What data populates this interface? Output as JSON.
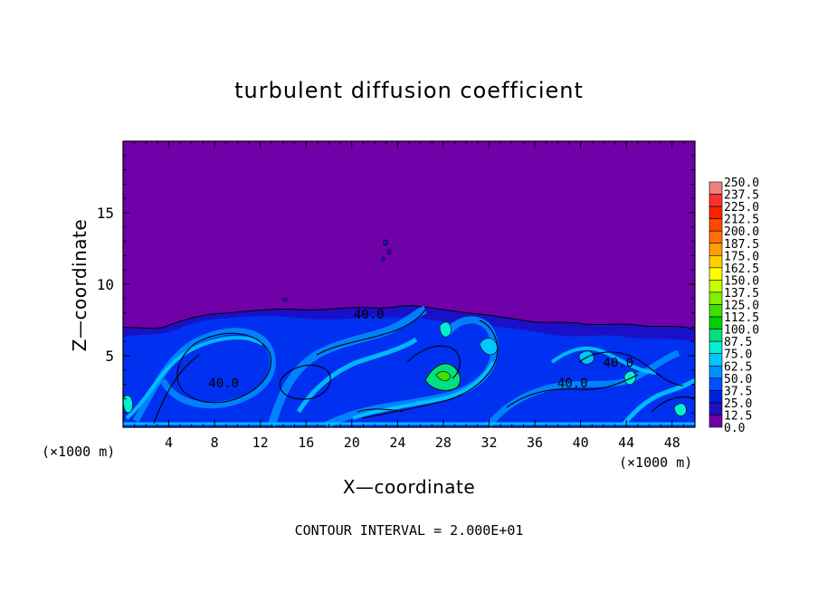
{
  "chart_data": {
    "type": "heatmap",
    "title": "turbulent diffusion coefficient",
    "xlabel": "X—coordinate",
    "ylabel": "Z—coordinate",
    "x_unit_left": "(×1000 m)",
    "x_unit_right": "(×1000 m)",
    "footer": "CONTOUR INTERVAL = 2.000E+01",
    "xlim": [
      0,
      50
    ],
    "ylim": [
      0,
      20
    ],
    "x_ticks": [
      4,
      8,
      12,
      16,
      20,
      24,
      28,
      32,
      36,
      40,
      44,
      48
    ],
    "y_ticks": [
      5,
      10,
      15
    ],
    "contour_labels": [
      {
        "text": "40.0",
        "x": 21.5,
        "z": 7.6
      },
      {
        "text": "40.0",
        "x": 8.8,
        "z": 2.8
      },
      {
        "text": "40.0",
        "x": 39.3,
        "z": 2.8
      },
      {
        "text": "40.0",
        "x": 43.3,
        "z": 4.2
      }
    ],
    "colorbar": {
      "levels": [
        "250.0",
        "237.5",
        "225.0",
        "212.5",
        "200.0",
        "187.5",
        "175.0",
        "162.5",
        "150.0",
        "137.5",
        "125.0",
        "112.5",
        "100.0",
        "87.5",
        "75.0",
        "62.5",
        "50.0",
        "37.5",
        "25.0",
        "12.5",
        "0.0"
      ],
      "colors": [
        "#f08080",
        "#ff3030",
        "#ff2000",
        "#ff4800",
        "#ff7000",
        "#ffa000",
        "#ffd000",
        "#ffff00",
        "#c8ff00",
        "#80f000",
        "#40e000",
        "#00d000",
        "#00e080",
        "#00f0d0",
        "#00c8ff",
        "#0090ff",
        "#0050ff",
        "#0020e0",
        "#2010c0",
        "#7000a8"
      ]
    }
  }
}
